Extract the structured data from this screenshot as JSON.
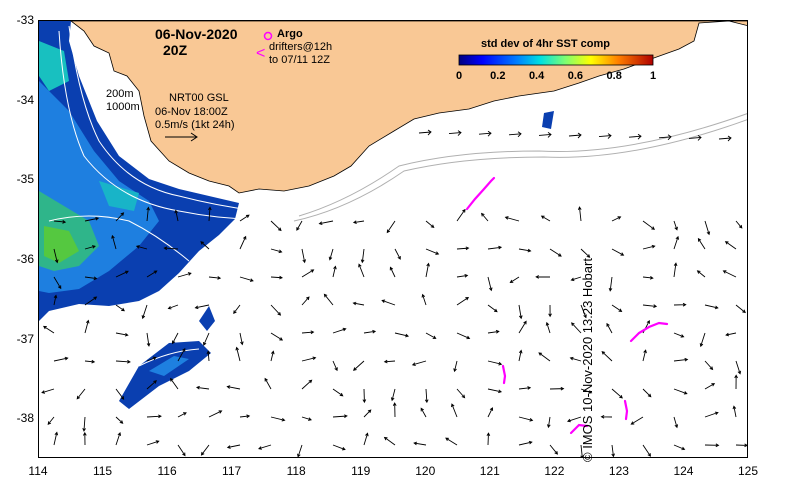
{
  "map": {
    "date": "06-Nov-2020",
    "time": "20Z",
    "legend": {
      "argo_symbol": "o",
      "argo_label": "Argo",
      "drifter_symbol": "<",
      "drifter_label_1": "drifters@12h",
      "drifter_label_2": "to 07/11 12Z"
    },
    "colorbar": {
      "title": "std dev of 4hr SST comp",
      "ticks": [
        "0",
        "0.2",
        "0.4",
        "0.6",
        "0.8",
        "1"
      ]
    },
    "isobaths": [
      "200m",
      "1000m"
    ],
    "current_info": {
      "product": "NRT00 GSL",
      "timestamp": "06-Nov 18:00Z",
      "scale": "0.5m/s (1kt 24h)"
    },
    "x_axis": {
      "ticks": [
        "114",
        "115",
        "116",
        "117",
        "118",
        "119",
        "120",
        "121",
        "122",
        "123",
        "124",
        "125"
      ]
    },
    "y_axis": {
      "ticks": [
        "-33",
        "-34",
        "-35",
        "-36",
        "-37",
        "-38"
      ]
    },
    "attribution": "© IMOS 10-Nov-2020 13:23 Hobart",
    "colors": {
      "land": "#f9c895",
      "coast": "#000000",
      "drifter": "#ff00ff",
      "isobath": "#ffffff",
      "isobath_open": "#b0b0b0"
    },
    "extent": {
      "lon": [
        114,
        125
      ],
      "lat": [
        -38.5,
        -33
      ]
    }
  }
}
